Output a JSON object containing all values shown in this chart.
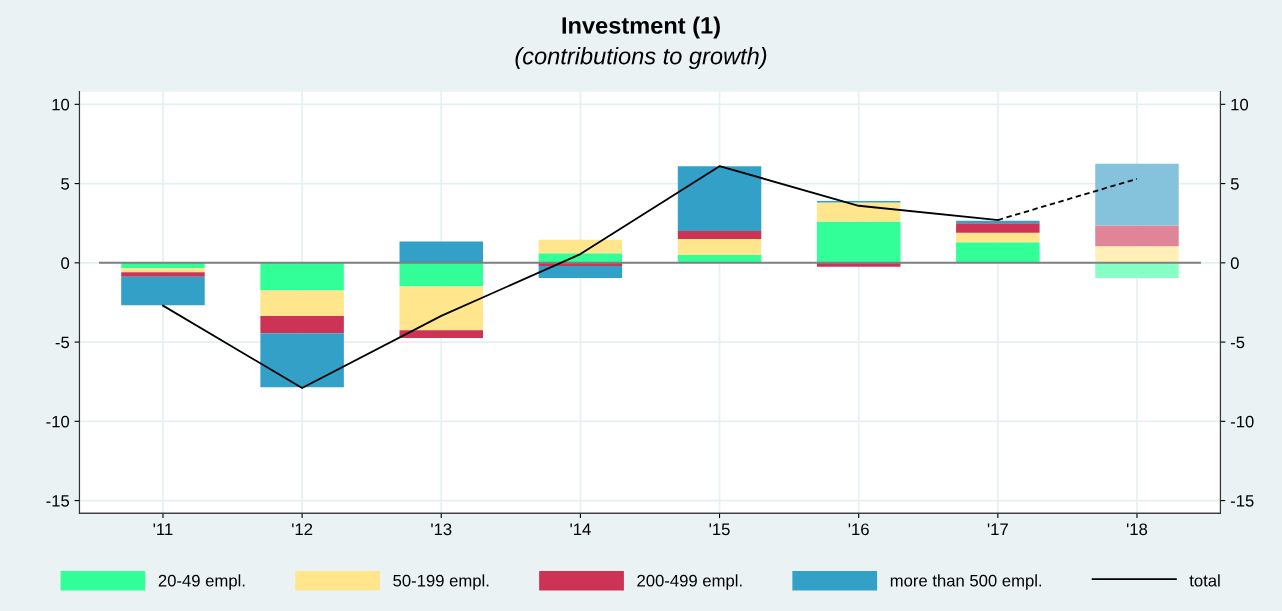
{
  "chart_data": {
    "type": "bar",
    "title": "Investment (1)",
    "subtitle": "(contributions to growth)",
    "categories": [
      "'11",
      "'12",
      "'13",
      "'14",
      "'15",
      "'16",
      "'17",
      "'18"
    ],
    "stacked": true,
    "series": [
      {
        "name": "20-49 empl.",
        "color": "#33ff99",
        "colors": [
          "#33ff99",
          "#33ff99",
          "#33ff99",
          "#33ff99",
          "#33ff99",
          "#33ff99",
          "#33ff99",
          "#88ffc4"
        ],
        "values": [
          -0.35,
          -1.75,
          -1.5,
          0.6,
          0.5,
          2.6,
          1.3,
          -0.95
        ]
      },
      {
        "name": "50-199 empl.",
        "color": "#ffe68c",
        "colors": [
          "#ffe68c",
          "#ffe68c",
          "#ffe68c",
          "#ffe68c",
          "#ffe68c",
          "#ffe68c",
          "#ffe68c",
          "#fff0b8"
        ],
        "values": [
          -0.25,
          -1.6,
          -2.75,
          0.85,
          1.0,
          1.2,
          0.6,
          1.05
        ]
      },
      {
        "name": "200-499 empl.",
        "color": "#cc3355",
        "colors": [
          "#cc3355",
          "#cc3355",
          "#cc3355",
          "#cc3355",
          "#cc3355",
          "#cc3355",
          "#cc3355",
          "#df8597"
        ],
        "values": [
          -0.28,
          -1.1,
          -0.5,
          -0.2,
          0.5,
          -0.25,
          0.6,
          1.3
        ]
      },
      {
        "name": "more than 500 empl.",
        "color": "#33a0c8",
        "colors": [
          "#33a0c8",
          "#33a0c8",
          "#33a0c8",
          "#33a0c8",
          "#33a0c8",
          "#33a0c8",
          "#33a0c8",
          "#85c3dd"
        ],
        "values": [
          -1.8,
          -3.4,
          1.35,
          -0.75,
          4.1,
          0.1,
          0.15,
          3.9
        ]
      },
      {
        "name": "total",
        "type": "line",
        "color": "#000000",
        "line_style": "solid",
        "values": [
          -2.7,
          -7.9,
          -3.35,
          0.55,
          6.1,
          3.6,
          2.7,
          null
        ]
      },
      {
        "type": "line",
        "color": "#000000",
        "line_style": "dashed",
        "values": [
          null,
          null,
          null,
          null,
          null,
          null,
          2.7,
          5.3
        ]
      }
    ],
    "ylim": [
      -15.8,
      10.8
    ],
    "yticks": [
      -15,
      -10,
      -5,
      0,
      5,
      10
    ],
    "y2lim": [
      -15.8,
      10.8
    ],
    "y2ticks": [
      -15,
      -10,
      -5,
      0,
      5,
      10
    ],
    "ref_lines": [
      {
        "axis": "y",
        "value": 0,
        "color": "#808080"
      }
    ],
    "grid": true,
    "legend": "bottom",
    "marker": "none"
  }
}
